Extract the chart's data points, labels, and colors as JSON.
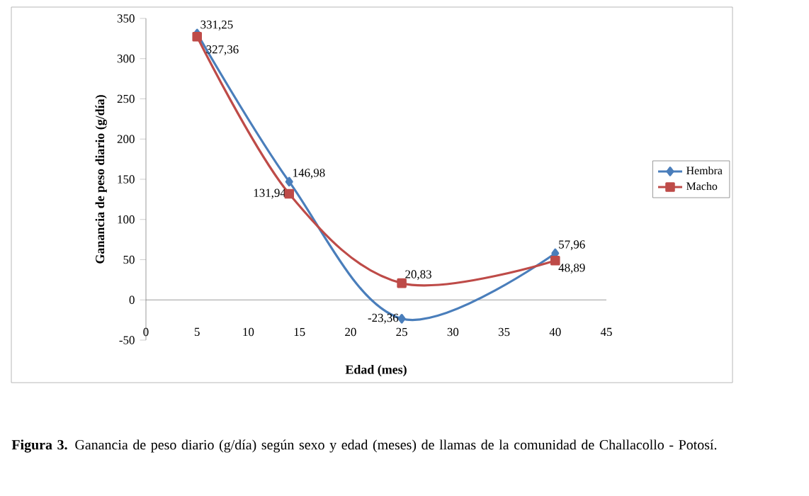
{
  "chart_data": {
    "type": "line",
    "xlabel": "Edad (mes)",
    "ylabel": "Ganancia de peso diario (g/día)",
    "xlim": [
      0,
      45
    ],
    "xticks": [
      0,
      5,
      10,
      15,
      20,
      25,
      30,
      35,
      40,
      45
    ],
    "ylim": [
      -50,
      350
    ],
    "yticks": [
      -50,
      0,
      50,
      100,
      150,
      200,
      250,
      300,
      350
    ],
    "x": [
      5,
      14,
      25,
      40
    ],
    "series": [
      {
        "name": "Hembra",
        "color": "#4a7ebb",
        "marker": "diamond",
        "values": [
          331.25,
          146.98,
          -23.36,
          57.96
        ],
        "value_labels": [
          "331,25",
          "146,98",
          "-23,36",
          "57,96"
        ]
      },
      {
        "name": "Macho",
        "color": "#be4b48",
        "marker": "square",
        "values": [
          327.36,
          131.94,
          20.83,
          48.89
        ],
        "value_labels": [
          "327,36",
          "131,94",
          "20,83",
          "48,89"
        ]
      }
    ],
    "legend": "right",
    "grid": false,
    "annotations": [
      "**Figura 3.** Ganancia de peso diario (g/día) según sexo y edad (meses) de llamas de la comunidad de Challacollo - Potosí."
    ]
  }
}
